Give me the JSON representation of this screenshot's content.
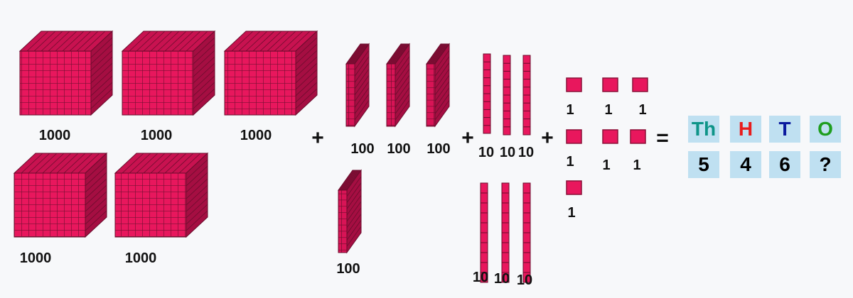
{
  "blocks": {
    "thousands": {
      "count": 5,
      "label": "1000"
    },
    "hundreds": {
      "count": 4,
      "label": "100"
    },
    "tens": {
      "count": 6,
      "label": "10"
    },
    "ones": {
      "count": 7,
      "label": "1"
    },
    "block_color": "#e8175d"
  },
  "operators": {
    "plus": "+",
    "equals": "="
  },
  "place_value_table": {
    "headers": [
      {
        "text": "Th",
        "color": "#0e9488"
      },
      {
        "text": "H",
        "color": "#e81c1c"
      },
      {
        "text": "T",
        "color": "#0a1a9e"
      },
      {
        "text": "O",
        "color": "#1f9e1f"
      }
    ],
    "values": [
      "5",
      "4",
      "6",
      "?"
    ],
    "cell_color": "#bfe0f1"
  }
}
